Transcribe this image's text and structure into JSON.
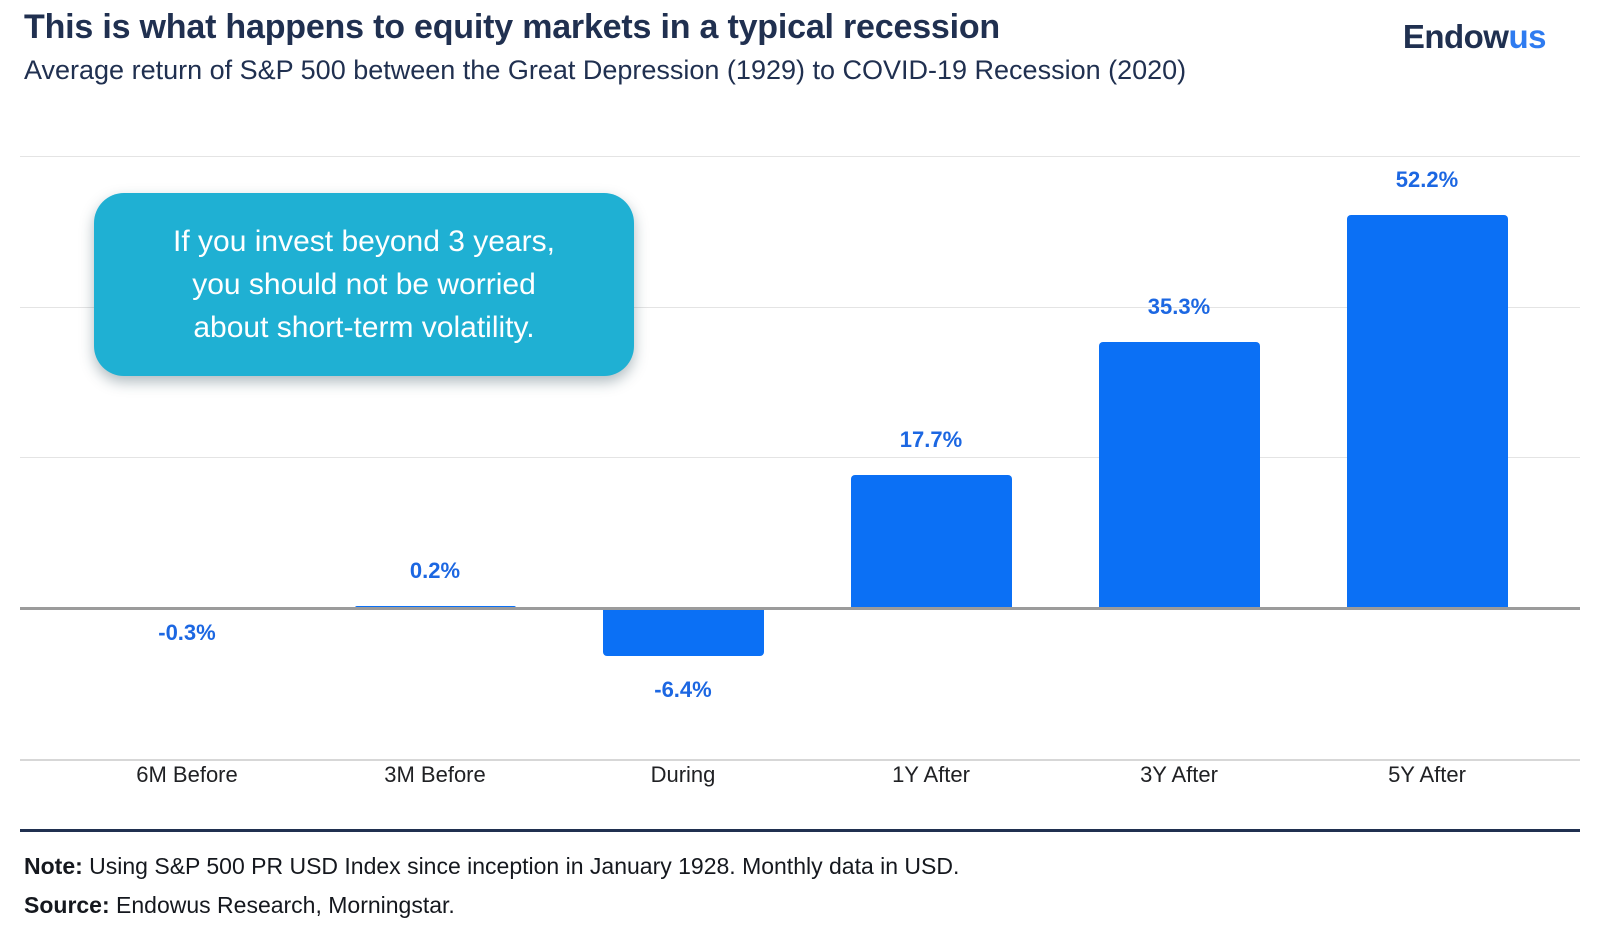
{
  "header": {
    "title": "This is what happens to equity markets in a typical recession",
    "subtitle": "Average return of S&P 500 between the Great Depression (1929) to COVID-19 Recession (2020)",
    "logo_part1": "Endow",
    "logo_part2": "us"
  },
  "callout": {
    "text": "If you invest beyond 3 years, you should not be worried about short-term volatility.",
    "lines": [
      "If you invest beyond 3 years,",
      "you should not be worried",
      "about short-term volatility."
    ],
    "background_color": "#1fb0d3",
    "text_color": "#ffffff"
  },
  "chart_data": {
    "type": "bar",
    "title": "This is what happens to equity markets in a typical recession",
    "subtitle": "Average return of S&P 500 between the Great Depression (1929) to COVID-19 Recession (2020)",
    "categories": [
      "6M Before",
      "3M Before",
      "During",
      "1Y After",
      "3Y After",
      "5Y After"
    ],
    "values": [
      -0.3,
      0.2,
      -6.4,
      17.7,
      35.3,
      52.2
    ],
    "value_labels": [
      "-0.3%",
      "0.2%",
      "-6.4%",
      "17.7%",
      "35.3%",
      "52.2%"
    ],
    "xlabel": "",
    "ylabel": "",
    "ylim": [
      -20,
      60
    ],
    "gridline_step": 20,
    "grid": true,
    "legend_position": "none",
    "bar_color": "#0b70f5",
    "value_label_color": "#1c67e2",
    "zero_line_color": "#9b9b9b"
  },
  "footer": {
    "note_label": "Note:",
    "note_text": " Using S&P 500 PR USD Index since inception in January 1928. Monthly data in USD.",
    "source_label": "Source:",
    "source_text": " Endowus Research, Morningstar."
  },
  "colors": {
    "navy": "#203050",
    "brand_blue": "#2e7bf0",
    "bar_blue": "#0b70f5",
    "callout_teal": "#1fb0d3"
  }
}
